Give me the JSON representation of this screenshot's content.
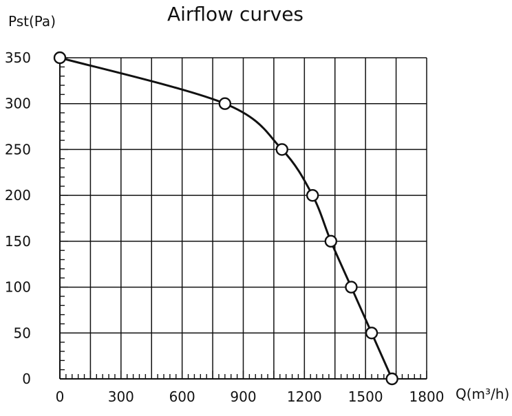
{
  "chart_data": {
    "type": "line",
    "title": "Airflow curves",
    "xlabel": "Q(m³/h)",
    "ylabel": "Pst(Pa)",
    "xlim": [
      0,
      1800
    ],
    "ylim": [
      0,
      350
    ],
    "x_ticks": [
      0,
      150,
      300,
      450,
      600,
      750,
      900,
      1050,
      1200,
      1350,
      1500,
      1650,
      1800
    ],
    "x_tick_labels": [
      "0",
      "",
      "300",
      "",
      "600",
      "",
      "900",
      "",
      "1200",
      "",
      "1500",
      "",
      "1800"
    ],
    "y_ticks": [
      0,
      50,
      100,
      150,
      200,
      250,
      300,
      350
    ],
    "y_tick_labels": [
      "0",
      "50",
      "100",
      "150",
      "200",
      "250",
      "300",
      "350"
    ],
    "grid": true,
    "series": [
      {
        "x": [
          0,
          810,
          1090,
          1240,
          1330,
          1430,
          1530,
          1630
        ],
        "y": [
          350,
          300,
          250,
          200,
          150,
          100,
          50,
          0
        ],
        "marker": "circle",
        "color": "#111111"
      }
    ]
  }
}
